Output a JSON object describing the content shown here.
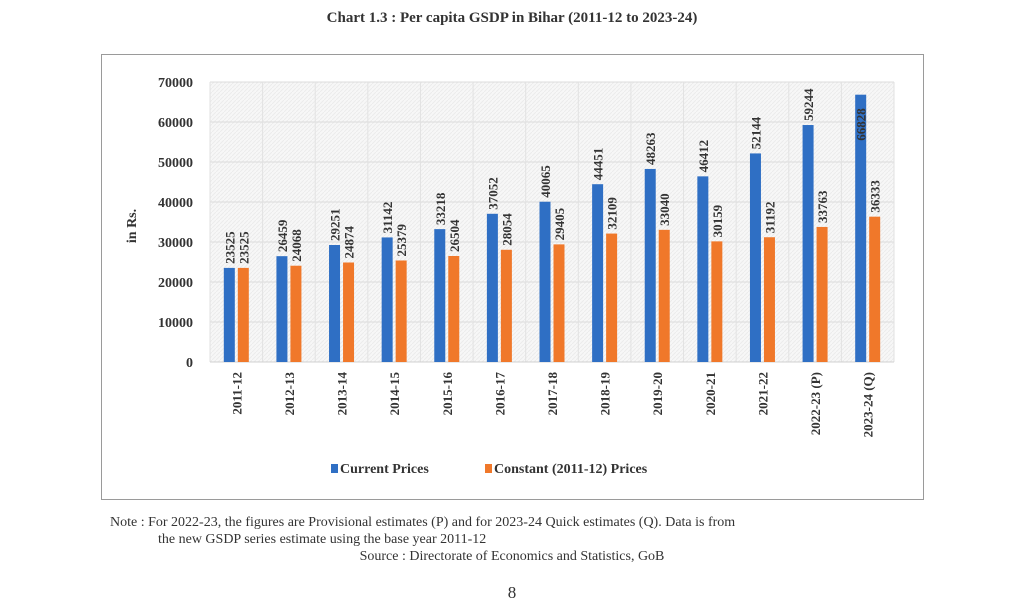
{
  "page": {
    "title": "Chart 1.3 :  Per capita GSDP in Bihar  (2011-12 to 2023-24)",
    "note_line1": "Note : For 2022-23, the figures are Provisional estimates (P) and for 2023-24 Quick estimates (Q). Data is from",
    "note_line2": "the new GSDP series estimate using the base year 2011-12",
    "source": "Source : Directorate of Economics and Statistics, GoB",
    "page_number": "8"
  },
  "chart_data": {
    "type": "bar",
    "title": "Chart 1.3 :  Per capita GSDP in Bihar  (2011-12 to 2023-24)",
    "xlabel": "",
    "ylabel": "in Rs.",
    "ylim": [
      0,
      70000
    ],
    "yticks": [
      0,
      10000,
      20000,
      30000,
      40000,
      50000,
      60000,
      70000
    ],
    "grid": true,
    "legend_position": "bottom",
    "categories": [
      "2011-12",
      "2012-13",
      "2013-14",
      "2014-15",
      "2015-16",
      "2016-17",
      "2017-18",
      "2018-19",
      "2019-20",
      "2020-21",
      "2021-22",
      "2022-23 (P)",
      "2023-24 (Q)"
    ],
    "series": [
      {
        "name": "Current Prices",
        "color": "#2f6fc4",
        "values": [
          23525,
          26459,
          29251,
          31142,
          33218,
          37052,
          40065,
          44451,
          48263,
          46412,
          52144,
          59244,
          66828
        ]
      },
      {
        "name": "Constant (2011-12) Prices",
        "color": "#f0782a",
        "values": [
          23525,
          24068,
          24874,
          25379,
          26504,
          28054,
          29405,
          32109,
          33040,
          30159,
          31192,
          33763,
          36333
        ]
      }
    ]
  }
}
